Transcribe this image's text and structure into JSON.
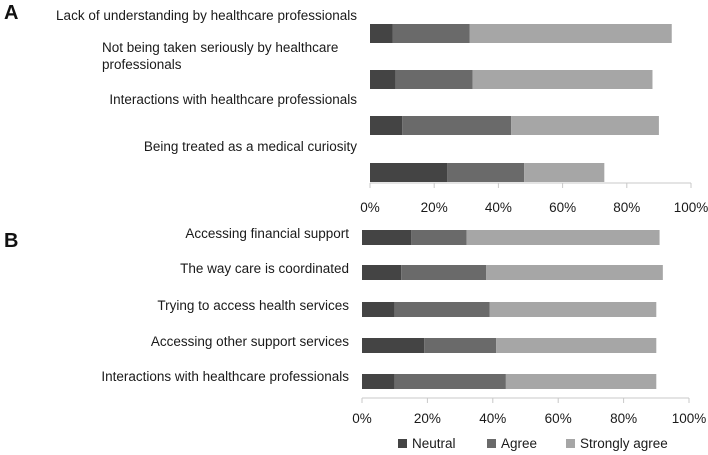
{
  "colors": {
    "Neutral": "#444444",
    "Agree": "#6a6a6a",
    "Strongly agree": "#a6a6a6",
    "axis": "#c8c8c8",
    "text": "#1a1a1a"
  },
  "legend": [
    "Neutral",
    "Agree",
    "Strongly agree"
  ],
  "chart_data": [
    {
      "type": "bar",
      "orientation": "horizontal",
      "stacked": true,
      "panel_label": "A",
      "categories": [
        "Lack of understanding by healthcare professionals",
        "Not being taken seriously by healthcare professionals",
        "Interactions with healthcare professionals",
        "Being treated as a medical curiosity"
      ],
      "series": [
        {
          "name": "Neutral",
          "values": [
            7,
            8,
            10,
            24
          ]
        },
        {
          "name": "Agree",
          "values": [
            24,
            24,
            34,
            24
          ]
        },
        {
          "name": "Strongly agree",
          "values": [
            63,
            56,
            46,
            25
          ]
        }
      ],
      "xlim": [
        0,
        100
      ],
      "xticks": [
        "0%",
        "20%",
        "40%",
        "60%",
        "80%",
        "100%"
      ],
      "grid": false
    },
    {
      "type": "bar",
      "orientation": "horizontal",
      "stacked": true,
      "panel_label": "B",
      "categories": [
        "Accessing financial support",
        "The way care is coordinated",
        "Trying to access health services",
        "Accessing other support services",
        "Interactions with healthcare professionals"
      ],
      "series": [
        {
          "name": "Neutral",
          "values": [
            15,
            12,
            10,
            19,
            10
          ]
        },
        {
          "name": "Agree",
          "values": [
            17,
            26,
            29,
            22,
            34
          ]
        },
        {
          "name": "Strongly agree",
          "values": [
            59,
            54,
            51,
            49,
            46
          ]
        }
      ],
      "xlim": [
        0,
        100
      ],
      "xticks": [
        "0%",
        "20%",
        "40%",
        "60%",
        "80%",
        "100%"
      ],
      "legend_position": "bottom",
      "grid": false
    }
  ]
}
